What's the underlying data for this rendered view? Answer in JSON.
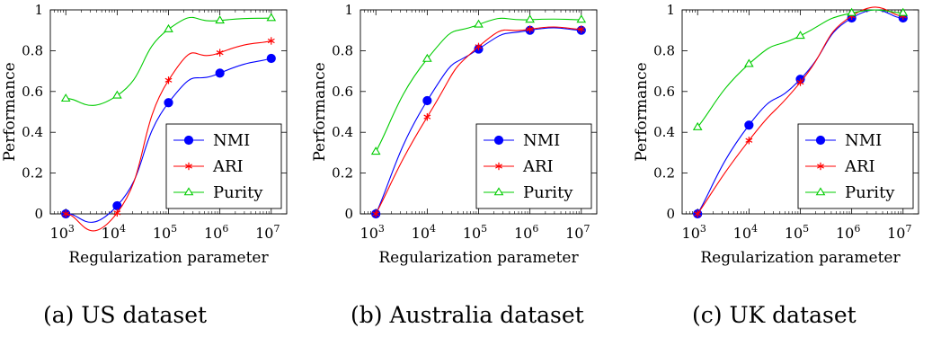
{
  "chart_data": [
    {
      "type": "line",
      "caption": "(a) US dataset",
      "xlabel": "Regularization parameter",
      "ylabel": "Performance",
      "xscale": "log",
      "x": [
        1000,
        10000,
        100000,
        1000000,
        10000000
      ],
      "x_tick_labels": [
        "3",
        "4",
        "5",
        "6",
        "7"
      ],
      "xlim": [
        500,
        20000000
      ],
      "ylim": [
        0,
        1
      ],
      "y_ticks": [
        "0",
        "0.2",
        "0.4",
        "0.6",
        "0.8",
        "1"
      ],
      "legend_position": "bottom-right",
      "series": [
        {
          "name": "NMI",
          "color": "#0000ff",
          "marker": "circle",
          "values": [
            0.0,
            0.04,
            0.545,
            0.69,
            0.762
          ]
        },
        {
          "name": "ARI",
          "color": "#ff0000",
          "marker": "star",
          "values": [
            0.0,
            0.005,
            0.655,
            0.79,
            0.848
          ]
        },
        {
          "name": "Purity",
          "color": "#00cc00",
          "marker": "triangle",
          "values": [
            0.565,
            0.58,
            0.905,
            0.948,
            0.96
          ]
        }
      ]
    },
    {
      "type": "line",
      "caption": "(b) Australia dataset",
      "xlabel": "Regularization parameter",
      "ylabel": "Performance",
      "xscale": "log",
      "x": [
        1000,
        10000,
        100000,
        1000000,
        10000000
      ],
      "x_tick_labels": [
        "3",
        "4",
        "5",
        "6",
        "7"
      ],
      "xlim": [
        500,
        20000000
      ],
      "ylim": [
        0,
        1
      ],
      "y_ticks": [
        "0",
        "0.2",
        "0.4",
        "0.6",
        "0.8",
        "1"
      ],
      "legend_position": "bottom-right",
      "series": [
        {
          "name": "NMI",
          "color": "#0000ff",
          "marker": "circle",
          "values": [
            0.0,
            0.555,
            0.808,
            0.9,
            0.9
          ]
        },
        {
          "name": "ARI",
          "color": "#ff0000",
          "marker": "star",
          "values": [
            0.0,
            0.475,
            0.82,
            0.905,
            0.905
          ]
        },
        {
          "name": "Purity",
          "color": "#00cc00",
          "marker": "triangle",
          "values": [
            0.305,
            0.76,
            0.928,
            0.952,
            0.952
          ]
        }
      ]
    },
    {
      "type": "line",
      "caption": "(c) UK dataset",
      "xlabel": "Regularization parameter",
      "ylabel": "Performance",
      "xscale": "log",
      "x": [
        1000,
        10000,
        100000,
        1000000,
        10000000
      ],
      "x_tick_labels": [
        "3",
        "4",
        "5",
        "6",
        "7"
      ],
      "xlim": [
        500,
        20000000
      ],
      "ylim": [
        0,
        1
      ],
      "y_ticks": [
        "0",
        "0.2",
        "0.4",
        "0.6",
        "0.8",
        "1"
      ],
      "legend_position": "bottom-right",
      "series": [
        {
          "name": "NMI",
          "color": "#0000ff",
          "marker": "circle",
          "values": [
            0.0,
            0.435,
            0.66,
            0.96,
            0.96
          ]
        },
        {
          "name": "ARI",
          "color": "#ff0000",
          "marker": "star",
          "values": [
            0.0,
            0.36,
            0.645,
            0.97,
            0.97
          ]
        },
        {
          "name": "Purity",
          "color": "#00cc00",
          "marker": "triangle",
          "values": [
            0.425,
            0.735,
            0.873,
            0.985,
            0.985
          ]
        }
      ]
    }
  ]
}
